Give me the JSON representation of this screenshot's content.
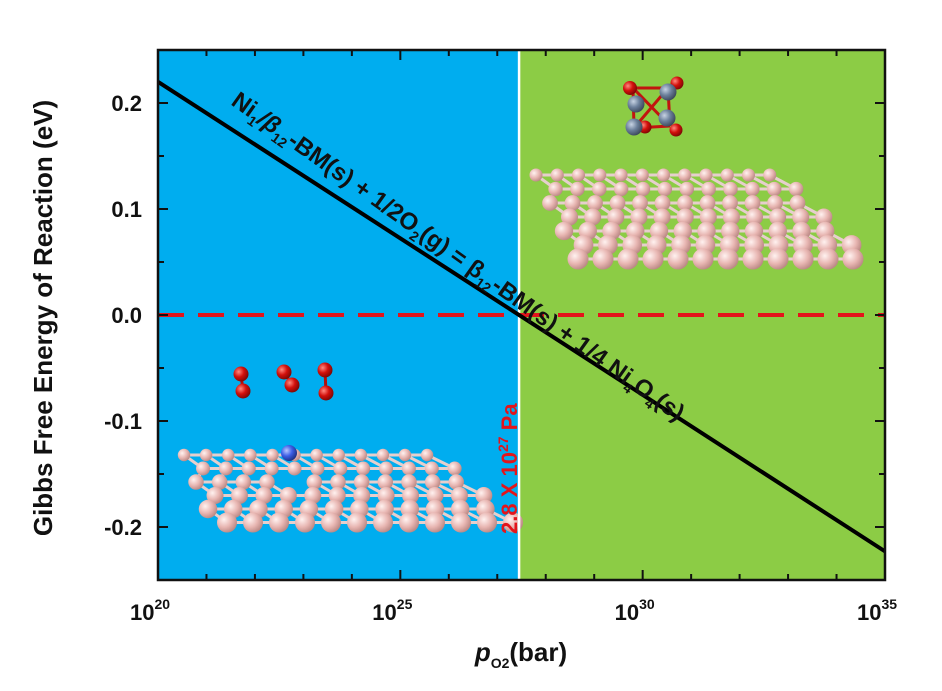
{
  "chart_data": {
    "type": "line",
    "xscale": "log10",
    "xlim_exponent": [
      20,
      35
    ],
    "ylim": [
      -0.25,
      0.25
    ],
    "yticks": [
      "0.2",
      "0.1",
      "0.0",
      "-0.1",
      "-0.2"
    ],
    "ytick_values": [
      0.2,
      0.1,
      0.0,
      -0.1,
      -0.2
    ],
    "xticks": [
      {
        "base": "10",
        "exp": "20",
        "exponent": 20
      },
      {
        "base": "10",
        "exp": "25",
        "exponent": 25
      },
      {
        "base": "10",
        "exp": "30",
        "exponent": 30
      },
      {
        "base": "10",
        "exp": "35",
        "exponent": 35
      }
    ],
    "ylabel": "Gibbs Free Energy of Reaction (eV)",
    "xlabel": {
      "main": "p",
      "sub": "O2",
      "unit": "(bar)"
    },
    "series": [
      {
        "x_exponent": [
          20,
          35
        ],
        "y": [
          0.22,
          -0.223
        ],
        "color": "#000000"
      }
    ],
    "zero_line": {
      "y": 0.0,
      "color": "#e3141b",
      "style": "dashed"
    },
    "threshold": {
      "x_exponent": 27.45,
      "label": {
        "prefix": "2.8 X 10",
        "exp": "27",
        "suffix": " Pa"
      }
    },
    "regions": [
      {
        "from": 20,
        "to": 27.45,
        "color": "#00adef"
      },
      {
        "from": 27.45,
        "to": 35,
        "color": "#8ccc45"
      }
    ],
    "annotation": {
      "t1": "Ni",
      "t1sub": "1",
      "t2": "/β",
      "t2sub": "12",
      "t3": "-BM(s) + 1/2O",
      "t3sub": "2",
      "t4": "(g) = β",
      "t4sub": "12",
      "t5": "-BM(s) + 1/4 Ni",
      "t5sub": "4",
      "t6": "O",
      "t6sub": "4",
      "t7": "(s)"
    }
  }
}
